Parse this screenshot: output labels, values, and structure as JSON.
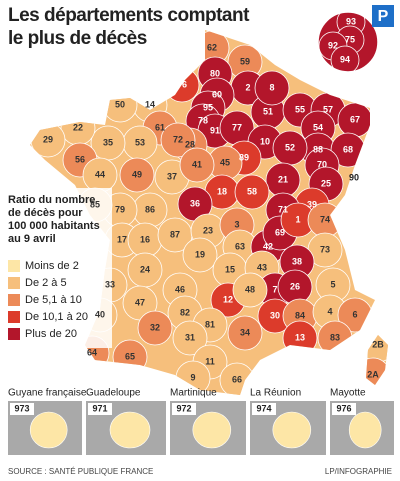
{
  "header": {
    "title_lines": [
      "Les départements comptant",
      "le plus de décès"
    ],
    "logo": "P"
  },
  "legend": {
    "title_lines": [
      "Ratio du nombre",
      "de décès pour",
      "100 000 habitants",
      "au 9 avril"
    ],
    "items": [
      {
        "label": "Moins de 2",
        "color": "#fde6a6"
      },
      {
        "label": "De 2 à 5",
        "color": "#f6bf7c"
      },
      {
        "label": "De 5,1 à 10",
        "color": "#ec8a58"
      },
      {
        "label": "De 10,1 à 20",
        "color": "#dc3b2b"
      },
      {
        "label": "Plus de 20",
        "color": "#b3162b"
      }
    ]
  },
  "departments": [
    {
      "code": "62",
      "level": 2
    },
    {
      "code": "59",
      "level": 2
    },
    {
      "code": "80",
      "level": 4
    },
    {
      "code": "2",
      "level": 4
    },
    {
      "code": "76",
      "level": 3
    },
    {
      "code": "60",
      "level": 4
    },
    {
      "code": "95",
      "level": 4
    },
    {
      "code": "14",
      "level": 1
    },
    {
      "code": "50",
      "level": 1
    },
    {
      "code": "61",
      "level": 2
    },
    {
      "code": "78",
      "level": 4
    },
    {
      "code": "91",
      "level": 4
    },
    {
      "code": "77",
      "level": 4
    },
    {
      "code": "51",
      "level": 4
    },
    {
      "code": "8",
      "level": 4
    },
    {
      "code": "55",
      "level": 4
    },
    {
      "code": "57",
      "level": 4
    },
    {
      "code": "54",
      "level": 4
    },
    {
      "code": "67",
      "level": 4
    },
    {
      "code": "88",
      "level": 4
    },
    {
      "code": "68",
      "level": 4
    },
    {
      "code": "10",
      "level": 4
    },
    {
      "code": "52",
      "level": 4
    },
    {
      "code": "70",
      "level": 4
    },
    {
      "code": "21",
      "level": 4
    },
    {
      "code": "25",
      "level": 4
    },
    {
      "code": "39",
      "level": 3
    },
    {
      "code": "71",
      "level": 4
    },
    {
      "code": "89",
      "level": 3
    },
    {
      "code": "28",
      "level": 2
    },
    {
      "code": "45",
      "level": 2
    },
    {
      "code": "72",
      "level": 2
    },
    {
      "code": "53",
      "level": 1
    },
    {
      "code": "35",
      "level": 1
    },
    {
      "code": "22",
      "level": 1
    },
    {
      "code": "29",
      "level": 1
    },
    {
      "code": "56",
      "level": 2
    },
    {
      "code": "44",
      "level": 1
    },
    {
      "code": "49",
      "level": 2
    },
    {
      "code": "37",
      "level": 1
    },
    {
      "code": "41",
      "level": 2
    },
    {
      "code": "18",
      "level": 3
    },
    {
      "code": "58",
      "level": 3
    },
    {
      "code": "36",
      "level": 4
    },
    {
      "code": "86",
      "level": 1
    },
    {
      "code": "79",
      "level": 1
    },
    {
      "code": "85",
      "level": 1
    },
    {
      "code": "17",
      "level": 1
    },
    {
      "code": "16",
      "level": 1
    },
    {
      "code": "87",
      "level": 1
    },
    {
      "code": "23",
      "level": 1
    },
    {
      "code": "3",
      "level": 2
    },
    {
      "code": "63",
      "level": 1
    },
    {
      "code": "42",
      "level": 4
    },
    {
      "code": "69",
      "level": 4
    },
    {
      "code": "1",
      "level": 3
    },
    {
      "code": "74",
      "level": 2
    },
    {
      "code": "73",
      "level": 1
    },
    {
      "code": "38",
      "level": 4
    },
    {
      "code": "19",
      "level": 1
    },
    {
      "code": "24",
      "level": 1
    },
    {
      "code": "15",
      "level": 1
    },
    {
      "code": "43",
      "level": 1
    },
    {
      "code": "7",
      "level": 4
    },
    {
      "code": "26",
      "level": 4
    },
    {
      "code": "5",
      "level": 1
    },
    {
      "code": "33",
      "level": 1
    },
    {
      "code": "47",
      "level": 1
    },
    {
      "code": "46",
      "level": 1
    },
    {
      "code": "12",
      "level": 3
    },
    {
      "code": "48",
      "level": 1
    },
    {
      "code": "30",
      "level": 3
    },
    {
      "code": "84",
      "level": 2
    },
    {
      "code": "4",
      "level": 1
    },
    {
      "code": "6",
      "level": 2
    },
    {
      "code": "83",
      "level": 2
    },
    {
      "code": "13",
      "level": 3
    },
    {
      "code": "34",
      "level": 2
    },
    {
      "code": "40",
      "level": 1
    },
    {
      "code": "82",
      "level": 1
    },
    {
      "code": "81",
      "level": 1
    },
    {
      "code": "32",
      "level": 2
    },
    {
      "code": "31",
      "level": 1
    },
    {
      "code": "11",
      "level": 1
    },
    {
      "code": "9",
      "level": 1
    },
    {
      "code": "66",
      "level": 1
    },
    {
      "code": "64",
      "level": 2
    },
    {
      "code": "65",
      "level": 2
    },
    {
      "code": "2B",
      "level": 1
    },
    {
      "code": "2A",
      "level": 2
    },
    {
      "code": "90",
      "level": 4
    }
  ],
  "paris_inset": [
    {
      "code": "93",
      "level": 4
    },
    {
      "code": "75",
      "level": 4
    },
    {
      "code": "92",
      "level": 4
    },
    {
      "code": "94",
      "level": 4
    }
  ],
  "overseas": [
    {
      "name": "Guyane française",
      "code": "973",
      "level": 0
    },
    {
      "name": "Guadeloupe",
      "code": "971",
      "level": 0
    },
    {
      "name": "Martinique",
      "code": "972",
      "level": 0
    },
    {
      "name": "La Réunion",
      "code": "974",
      "level": 0
    },
    {
      "name": "Mayotte",
      "code": "976",
      "level": 0
    }
  ],
  "footer": {
    "source": "SOURCE : SANTÉ PUBLIQUE FRANCE",
    "credit": "LP/INFOGRAPHIE"
  }
}
